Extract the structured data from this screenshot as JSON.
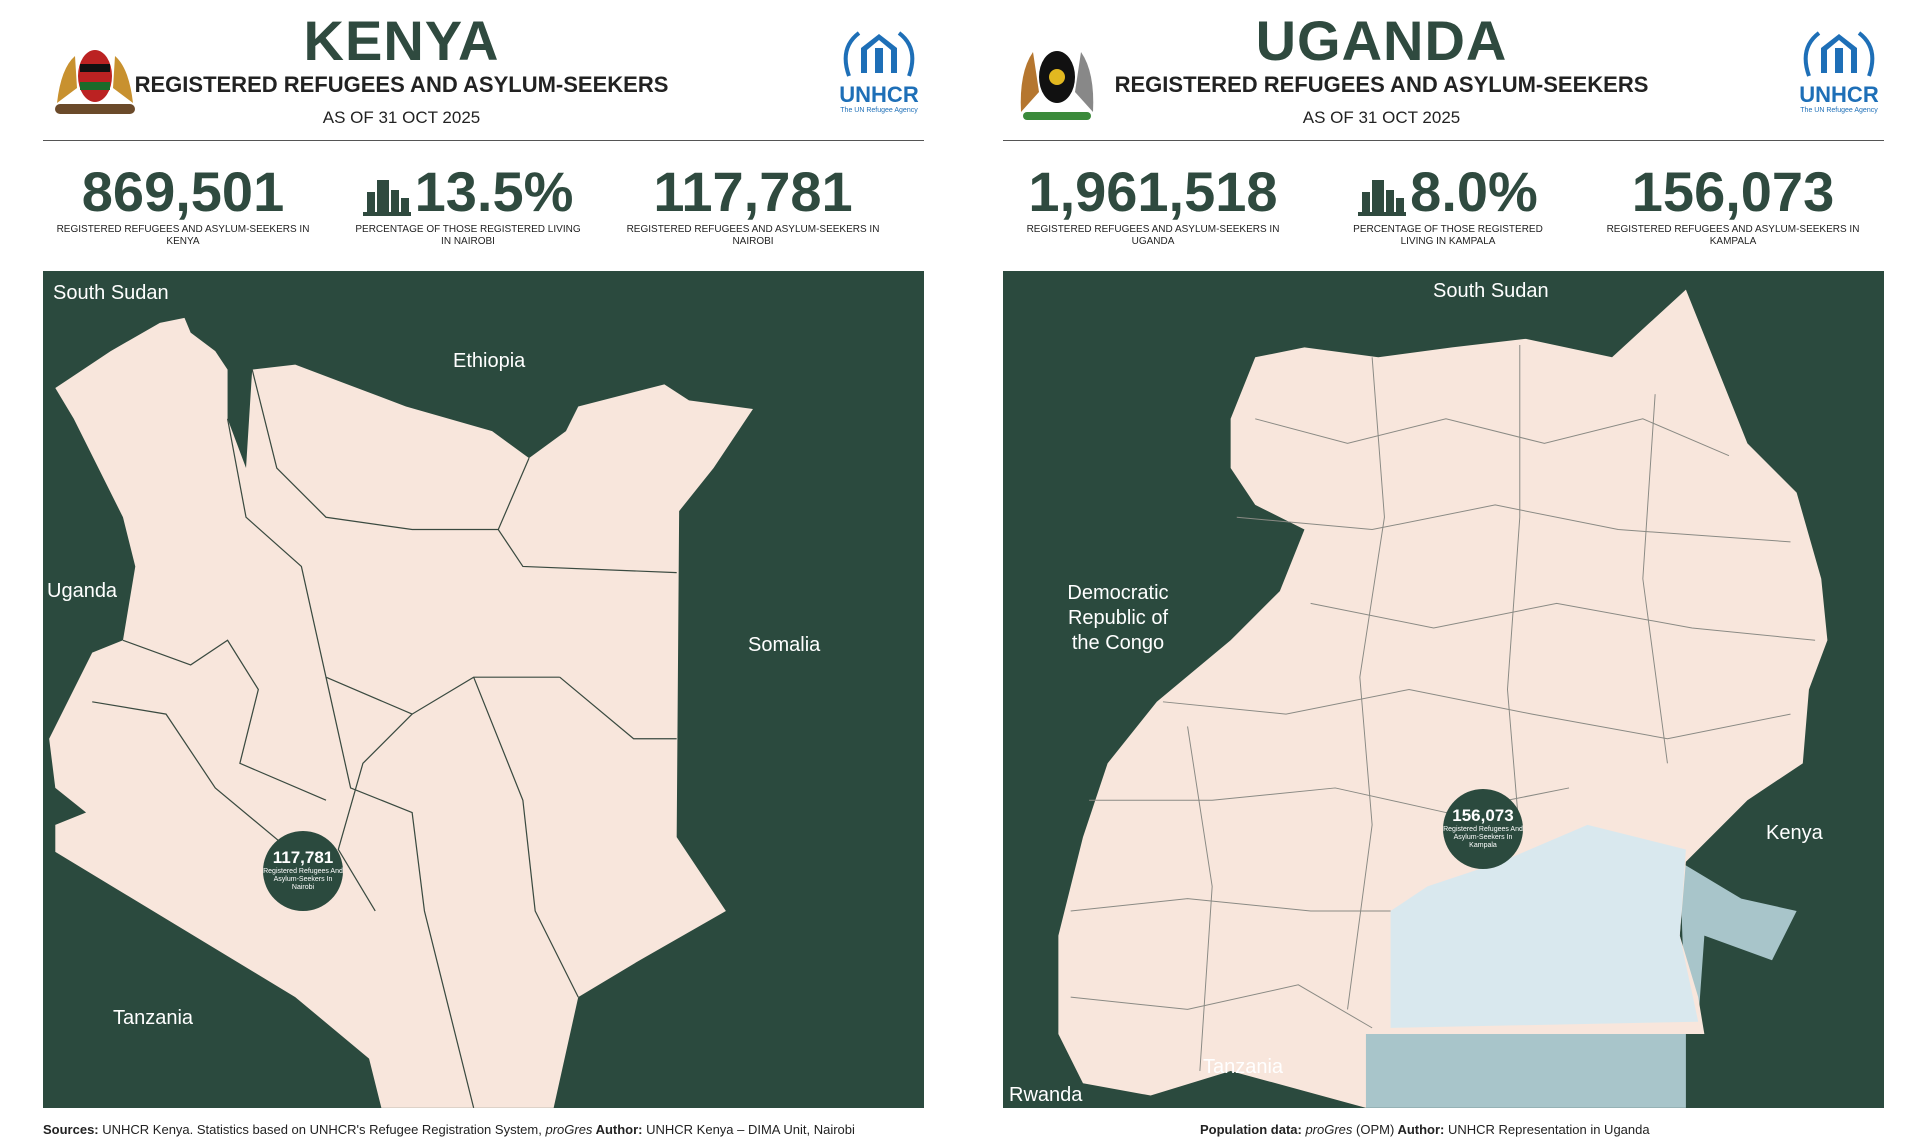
{
  "kenya": {
    "title": "KENYA",
    "subtitle": "REGISTERED REFUGEES AND ASYLUM-SEEKERS",
    "date": "AS OF 31 OCT 2025",
    "stats": [
      {
        "value": "869,501",
        "label": "REGISTERED REFUGEES AND ASYLUM-SEEKERS IN KENYA"
      },
      {
        "value": "13.5%",
        "label": "PERCENTAGE OF THOSE REGISTERED LIVING IN NAIROBI",
        "icon": "city-buildings-icon"
      },
      {
        "value": "117,781",
        "label": "REGISTERED REFUGEES AND ASYLUM-SEEKERS IN NAIROBI"
      }
    ],
    "map_labels": {
      "south_sudan": "South Sudan",
      "ethiopia": "Ethiopia",
      "uganda": "Uganda",
      "somalia": "Somalia",
      "tanzania": "Tanzania"
    },
    "bubble": {
      "value": "117,781",
      "label": "Registered Refugees And Asylum-Seekers In Nairobi"
    },
    "footer": {
      "sources_label": "Sources:",
      "sources": " UNHCR Kenya. Statistics based on UNHCR's Refugee Registration System, ",
      "progres": "proGres",
      "author_label": " Author:",
      "author": " UNHCR Kenya – DIMA Unit, Nairobi"
    }
  },
  "uganda": {
    "title": "UGANDA",
    "subtitle": "REGISTERED REFUGEES AND ASYLUM-SEEKERS",
    "date": "AS OF 31 OCT 2025",
    "stats": [
      {
        "value": "1,961,518",
        "label": "REGISTERED REFUGEES AND ASYLUM-SEEKERS IN UGANDA"
      },
      {
        "value": "8.0%",
        "label": "PERCENTAGE OF THOSE REGISTERED LIVING IN KAMPALA",
        "icon": "city-buildings-icon"
      },
      {
        "value": "156,073",
        "label": "REGISTERED REFUGEES AND ASYLUM-SEEKERS IN KAMPALA"
      }
    ],
    "map_labels": {
      "south_sudan": "South Sudan",
      "drc": "Democratic Republic of the Congo",
      "kenya": "Kenya",
      "tanzania": "Tanzania",
      "rwanda": "Rwanda"
    },
    "bubble": {
      "value": "156,073",
      "label": "Registered Refugees And Asylum-Seekers In Kampala"
    },
    "footer": {
      "pop_label": "Population data:",
      "progres": " proGres",
      "opm": " (OPM)",
      "author_label": " Author:",
      "author": " UNHCR Representation in Uganda"
    }
  },
  "logo": {
    "name": "UNHCR",
    "tagline": "The UN Refugee Agency"
  },
  "colors": {
    "map_bg": "#2b4a3e",
    "land": "#f8e6dc",
    "lake": "#d9e8ee",
    "lake_deep": "#a8c5ca",
    "text": "#2f4a3f"
  }
}
